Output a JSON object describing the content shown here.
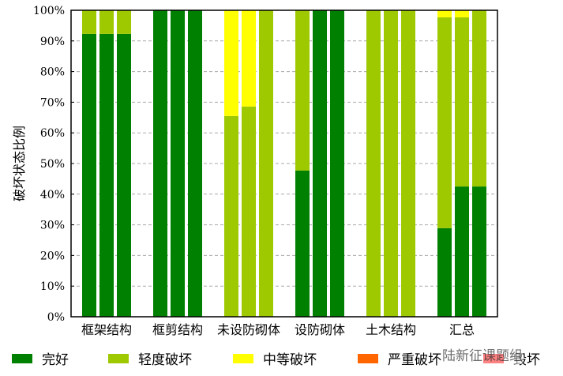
{
  "chart_data": {
    "type": "bar",
    "stacked": true,
    "title": "",
    "xlabel": "",
    "ylabel": "破坏状态比例",
    "ylim": [
      0,
      100
    ],
    "yticks": [
      "0%",
      "10%",
      "20%",
      "30%",
      "40%",
      "50%",
      "60%",
      "70%",
      "80%",
      "90%",
      "100%"
    ],
    "categories": [
      "框架结构",
      "框剪结构",
      "未设防砌体",
      "设防砌体",
      "土木结构",
      "汇总"
    ],
    "bars_per_category": 3,
    "grid": true,
    "legend_position": "bottom",
    "series": [
      {
        "name": "完好",
        "color": "#008000",
        "values": [
          [
            92.3,
            92.3,
            92.3
          ],
          [
            100,
            100,
            100
          ],
          [
            0,
            0,
            0
          ],
          [
            47.7,
            100,
            100
          ],
          [
            0,
            0,
            0
          ],
          [
            28.9,
            42.5,
            42.5
          ]
        ]
      },
      {
        "name": "轻度破坏",
        "color": "#9EC800",
        "values": [
          [
            7.7,
            7.7,
            7.7
          ],
          [
            0,
            0,
            0
          ],
          [
            65.5,
            68.6,
            100
          ],
          [
            52.3,
            0,
            0
          ],
          [
            100,
            100,
            100
          ],
          [
            68.8,
            55.2,
            57.5
          ]
        ]
      },
      {
        "name": "中等破坏",
        "color": "#FFFF00",
        "values": [
          [
            0,
            0,
            0
          ],
          [
            0,
            0,
            0
          ],
          [
            34.5,
            31.4,
            0
          ],
          [
            0,
            0,
            0
          ],
          [
            0,
            0,
            0
          ],
          [
            2.3,
            2.3,
            0
          ]
        ]
      },
      {
        "name": "严重破坏",
        "color": "#FF6600",
        "values": [
          [
            0,
            0,
            0
          ],
          [
            0,
            0,
            0
          ],
          [
            0,
            0,
            0
          ],
          [
            0,
            0,
            0
          ],
          [
            0,
            0,
            0
          ],
          [
            0,
            0,
            0
          ]
        ]
      },
      {
        "name": "毁坏",
        "color": "#FF0000",
        "values": [
          [
            0,
            0,
            0
          ],
          [
            0,
            0,
            0
          ],
          [
            0,
            0,
            0
          ],
          [
            0,
            0,
            0
          ],
          [
            0,
            0,
            0
          ],
          [
            0,
            0,
            0
          ]
        ]
      }
    ]
  },
  "watermark": "陆新征课题组"
}
